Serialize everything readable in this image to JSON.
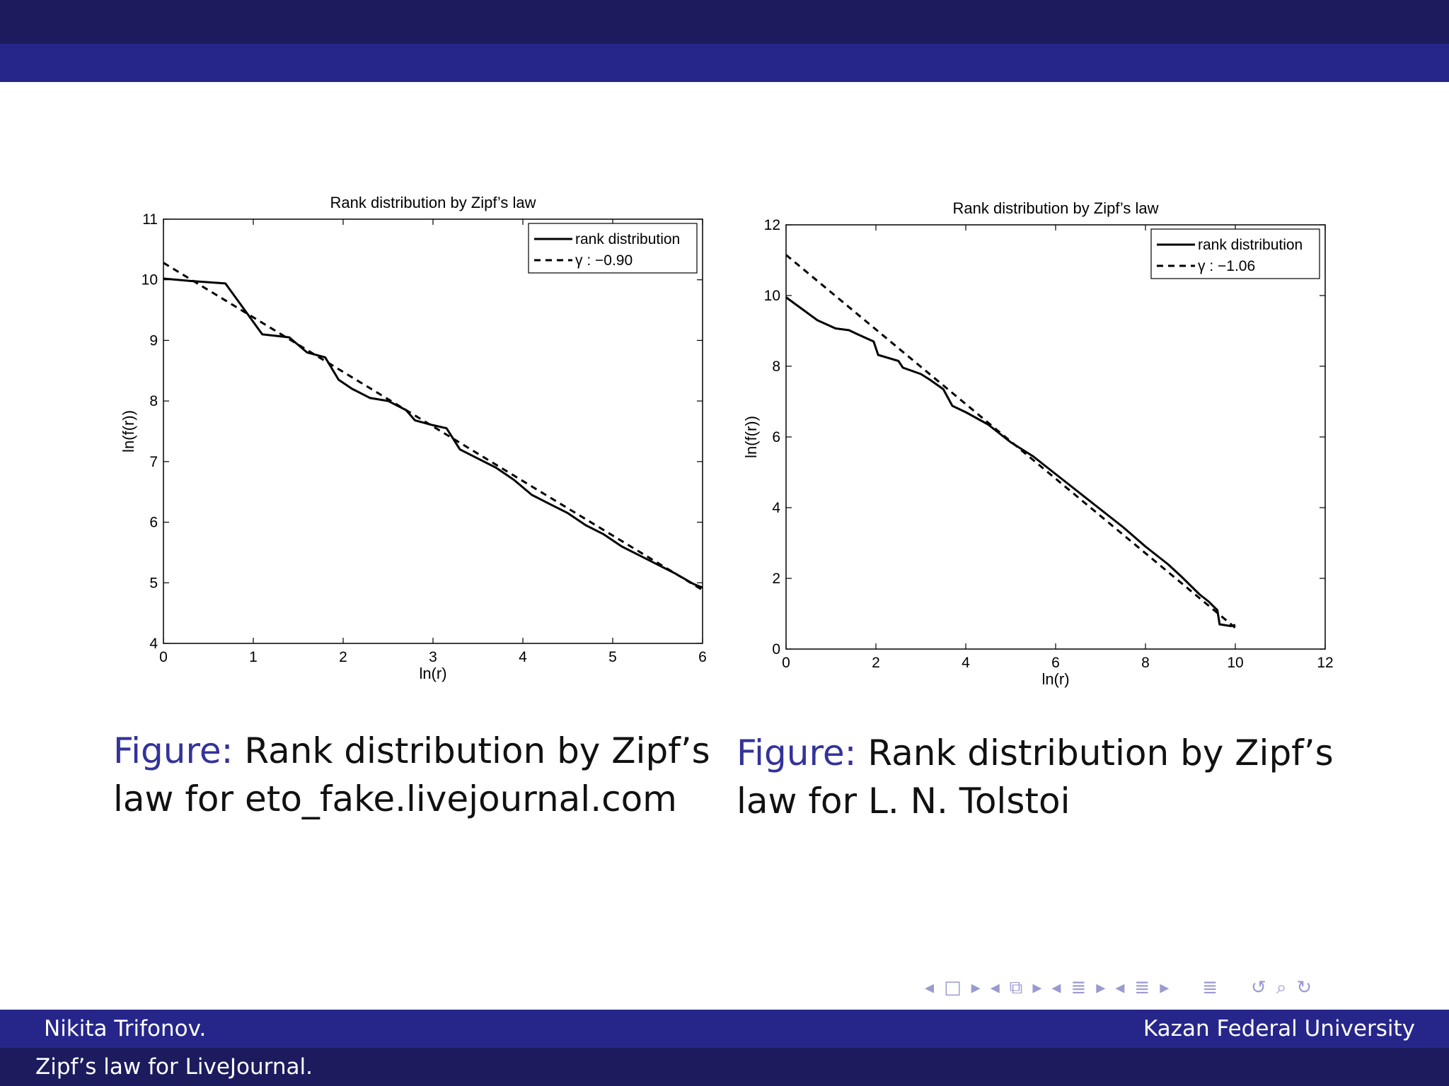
{
  "footer": {
    "author": "Nikita Trifonov.",
    "institute": "Kazan Federal University",
    "title": "Zipf’s law for LiveJournal."
  },
  "captions": [
    {
      "label": "Figure:",
      "line1": "Rank distribution by Zipf’s",
      "line2": "law for eto_fake.livejournal.com"
    },
    {
      "label": "Figure:",
      "line1": "Rank distribution by Zipf’s",
      "line2": "law for L. N. Tolstoi"
    }
  ],
  "nav_icons": [
    "nav-left-icon",
    "frame-icon",
    "nav-right-icon",
    "nav-left-icon",
    "subsection-icon",
    "nav-right-icon",
    "nav-left-icon",
    "section-icon",
    "nav-right-icon",
    "nav-left-icon",
    "outline-icon",
    "nav-right-icon",
    "toc-icon",
    "undo-icon",
    "search-icon",
    "redo-icon"
  ],
  "chart_data": [
    {
      "type": "line",
      "title": "Rank distribution by Zipf’s law",
      "xlabel": "ln(r)",
      "ylabel": "ln(f(r))",
      "xlim": [
        0,
        6
      ],
      "ylim": [
        4,
        11
      ],
      "xticks": [
        0,
        1,
        2,
        3,
        4,
        5,
        6
      ],
      "yticks": [
        4,
        5,
        6,
        7,
        8,
        9,
        10,
        11
      ],
      "grid": false,
      "legend_position": "top-right",
      "series": [
        {
          "name": "rank distribution",
          "style": "solid",
          "x": [
            0,
            0.3,
            0.69,
            1.1,
            1.4,
            1.6,
            1.8,
            1.95,
            2.1,
            2.3,
            2.5,
            2.7,
            2.8,
            3.0,
            3.15,
            3.3,
            3.5,
            3.7,
            3.9,
            4.1,
            4.3,
            4.5,
            4.7,
            4.9,
            5.1,
            5.3,
            5.5,
            5.7,
            5.9,
            6.0
          ],
          "y": [
            10.02,
            9.98,
            9.94,
            9.1,
            9.05,
            8.8,
            8.72,
            8.35,
            8.2,
            8.05,
            8.0,
            7.85,
            7.68,
            7.6,
            7.55,
            7.2,
            7.05,
            6.9,
            6.7,
            6.45,
            6.3,
            6.15,
            5.95,
            5.8,
            5.6,
            5.45,
            5.3,
            5.15,
            4.98,
            4.92
          ]
        },
        {
          "name": "γ : −0.90",
          "style": "dashed",
          "x": [
            0,
            6
          ],
          "y": [
            10.28,
            4.88
          ]
        }
      ]
    },
    {
      "type": "line",
      "title": "Rank distribution by Zipf’s law",
      "xlabel": "ln(r)",
      "ylabel": "ln(f(r))",
      "xlim": [
        0,
        12
      ],
      "ylim": [
        0,
        12
      ],
      "xticks": [
        0,
        2,
        4,
        6,
        8,
        10,
        12
      ],
      "yticks": [
        0,
        2,
        4,
        6,
        8,
        10,
        12
      ],
      "grid": false,
      "legend_position": "top-right",
      "series": [
        {
          "name": "rank distribution",
          "style": "solid",
          "x": [
            0,
            0.7,
            1.1,
            1.4,
            1.6,
            1.95,
            2.05,
            2.5,
            2.6,
            3.0,
            3.2,
            3.5,
            3.7,
            4.0,
            4.5,
            5.0,
            5.5,
            6.0,
            6.5,
            7.0,
            7.5,
            8.0,
            8.5,
            8.8,
            9.0,
            9.2,
            9.4,
            9.6,
            9.65,
            9.9,
            10.0
          ],
          "y": [
            9.95,
            9.3,
            9.07,
            9.02,
            8.9,
            8.7,
            8.32,
            8.15,
            7.96,
            7.78,
            7.62,
            7.35,
            6.88,
            6.7,
            6.35,
            5.85,
            5.45,
            4.95,
            4.45,
            3.95,
            3.45,
            2.9,
            2.4,
            2.05,
            1.8,
            1.55,
            1.35,
            1.1,
            0.7,
            0.65,
            0.68
          ]
        },
        {
          "name": "γ : −1.06",
          "style": "dashed",
          "x": [
            0,
            10
          ],
          "y": [
            11.15,
            0.6
          ]
        }
      ]
    }
  ]
}
